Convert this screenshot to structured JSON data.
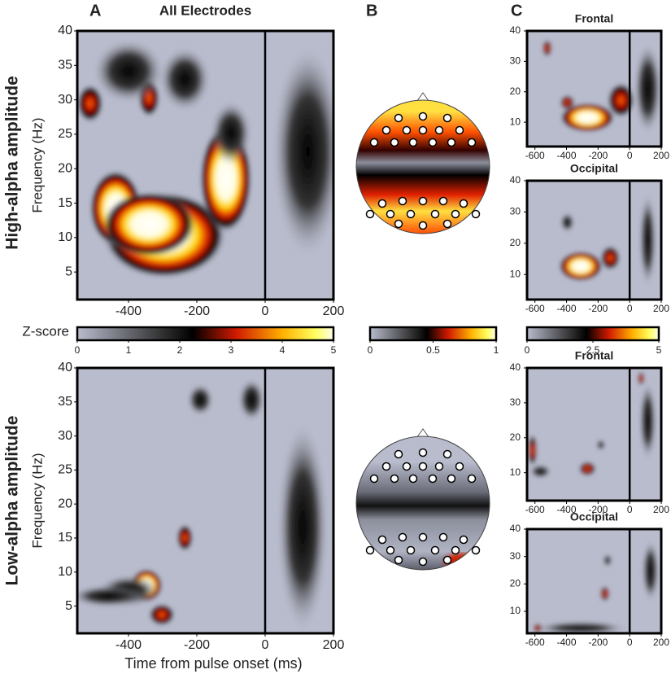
{
  "figure": {
    "panel_labels": [
      "A",
      "B",
      "C"
    ],
    "row_labels": [
      "High-alpha amplitude",
      "Low-alpha amplitude"
    ]
  },
  "chart_data": [
    {
      "type": "heatmap",
      "title": "All Electrodes",
      "ylabel": "Frequency (Hz)",
      "xlim": [
        -550,
        200
      ],
      "ylim": [
        1,
        40
      ],
      "xticks": [
        -400,
        -200,
        0,
        200
      ],
      "yticks": [
        5,
        10,
        15,
        20,
        25,
        30,
        35,
        40
      ]
    },
    {
      "type": "heatmap",
      "title": "Frontal",
      "xlim": [
        -650,
        200
      ],
      "ylim": [
        2,
        40
      ],
      "xticks": [
        -600,
        -400,
        -200,
        0,
        200
      ],
      "yticks": [
        10,
        20,
        30,
        40
      ]
    },
    {
      "type": "heatmap",
      "title": "Occipital",
      "xlim": [
        -650,
        200
      ],
      "ylim": [
        2,
        40
      ],
      "xticks": [
        -600,
        -400,
        -200,
        0,
        200
      ],
      "yticks": [
        10,
        20,
        30,
        40
      ]
    },
    {
      "type": "colorbar",
      "label": "Z-score",
      "lim": [
        0,
        5
      ],
      "ticks": [
        0,
        1,
        2,
        3,
        4,
        5
      ]
    },
    {
      "type": "colorbar",
      "lim": [
        0,
        1
      ],
      "ticks": [
        0,
        0.5,
        1
      ]
    },
    {
      "type": "colorbar",
      "lim": [
        0,
        5
      ],
      "ticks": [
        0,
        2.5,
        5
      ]
    },
    {
      "type": "heatmap",
      "ylabel": "Frequency (Hz)",
      "xlabel": "Time from pulse onset (ms)",
      "xlim": [
        -550,
        200
      ],
      "ylim": [
        1,
        40
      ],
      "xticks": [
        -400,
        -200,
        0,
        200
      ],
      "yticks": [
        5,
        10,
        15,
        20,
        25,
        30,
        35,
        40
      ]
    },
    {
      "type": "heatmap",
      "title": "Frontal",
      "xlim": [
        -650,
        200
      ],
      "ylim": [
        2,
        40
      ],
      "xticks": [
        -600,
        -400,
        -200,
        0,
        200
      ],
      "yticks": [
        10,
        20,
        30,
        40
      ]
    },
    {
      "type": "heatmap",
      "title": "Occipital",
      "xlim": [
        -650,
        200
      ],
      "ylim": [
        2,
        40
      ],
      "xticks": [
        -600,
        -400,
        -200,
        0,
        200
      ],
      "yticks": [
        10,
        20,
        30,
        40
      ]
    }
  ]
}
